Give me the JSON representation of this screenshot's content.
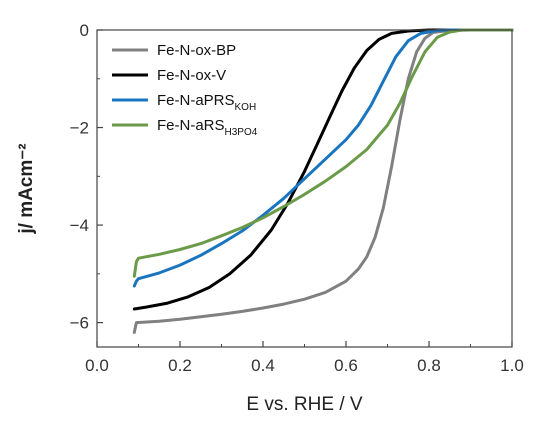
{
  "chart_data": {
    "type": "line",
    "xlabel": "E vs. RHE / V",
    "ylabel": "j/ mAcm⁻²",
    "xlim": [
      0.0,
      1.0
    ],
    "ylim": [
      -6.5,
      0
    ],
    "xticks": [
      0.0,
      0.2,
      0.4,
      0.6,
      0.8,
      1.0
    ],
    "xtick_labels": [
      "0.0",
      "0.2",
      "0.4",
      "0.6",
      "0.8",
      "1.0"
    ],
    "yticks": [
      0,
      -2,
      -4,
      -6
    ],
    "ytick_labels": [
      "0",
      "−2",
      "−4",
      "−6"
    ],
    "legend_position": "top-left",
    "grid": false,
    "series": [
      {
        "name": "Fe-N-ox-BP",
        "name_main": "Fe-N-ox-BP",
        "name_sub": "",
        "color": "#808080",
        "points": [
          [
            0.09,
            -6.2
          ],
          [
            0.095,
            -6.0
          ],
          [
            0.15,
            -5.97
          ],
          [
            0.2,
            -5.93
          ],
          [
            0.25,
            -5.88
          ],
          [
            0.3,
            -5.83
          ],
          [
            0.35,
            -5.77
          ],
          [
            0.4,
            -5.7
          ],
          [
            0.45,
            -5.62
          ],
          [
            0.5,
            -5.52
          ],
          [
            0.55,
            -5.38
          ],
          [
            0.6,
            -5.15
          ],
          [
            0.63,
            -4.9
          ],
          [
            0.65,
            -4.65
          ],
          [
            0.67,
            -4.25
          ],
          [
            0.69,
            -3.65
          ],
          [
            0.71,
            -2.8
          ],
          [
            0.73,
            -1.85
          ],
          [
            0.75,
            -1.0
          ],
          [
            0.77,
            -0.45
          ],
          [
            0.79,
            -0.17
          ],
          [
            0.81,
            -0.05
          ],
          [
            0.85,
            -0.01
          ],
          [
            0.9,
            0.0
          ],
          [
            1.0,
            0.0
          ]
        ]
      },
      {
        "name": "Fe-N-ox-V",
        "name_main": "Fe-N-ox-V",
        "name_sub": "",
        "color": "#000000",
        "points": [
          [
            0.09,
            -5.72
          ],
          [
            0.12,
            -5.68
          ],
          [
            0.17,
            -5.6
          ],
          [
            0.22,
            -5.47
          ],
          [
            0.27,
            -5.28
          ],
          [
            0.32,
            -5.0
          ],
          [
            0.37,
            -4.62
          ],
          [
            0.42,
            -4.1
          ],
          [
            0.46,
            -3.55
          ],
          [
            0.5,
            -2.9
          ],
          [
            0.53,
            -2.35
          ],
          [
            0.56,
            -1.8
          ],
          [
            0.59,
            -1.25
          ],
          [
            0.62,
            -0.78
          ],
          [
            0.65,
            -0.42
          ],
          [
            0.68,
            -0.19
          ],
          [
            0.71,
            -0.07
          ],
          [
            0.75,
            -0.02
          ],
          [
            0.8,
            0.0
          ],
          [
            1.0,
            0.0
          ]
        ]
      },
      {
        "name": "Fe-N-aPRS_KOH",
        "name_main": "Fe-N-aPRS",
        "name_sub": "KOH",
        "color": "#1a75c0",
        "points": [
          [
            0.09,
            -5.25
          ],
          [
            0.095,
            -5.15
          ],
          [
            0.1,
            -5.1
          ],
          [
            0.15,
            -4.98
          ],
          [
            0.2,
            -4.82
          ],
          [
            0.25,
            -4.62
          ],
          [
            0.3,
            -4.38
          ],
          [
            0.35,
            -4.12
          ],
          [
            0.4,
            -3.8
          ],
          [
            0.45,
            -3.45
          ],
          [
            0.5,
            -3.05
          ],
          [
            0.55,
            -2.65
          ],
          [
            0.6,
            -2.25
          ],
          [
            0.63,
            -1.95
          ],
          [
            0.66,
            -1.55
          ],
          [
            0.69,
            -1.05
          ],
          [
            0.72,
            -0.55
          ],
          [
            0.75,
            -0.22
          ],
          [
            0.78,
            -0.07
          ],
          [
            0.82,
            -0.01
          ],
          [
            0.85,
            0.0
          ],
          [
            1.0,
            0.0
          ]
        ]
      },
      {
        "name": "Fe-N-aRS_H3PO4",
        "name_main": "Fe-N-aRS",
        "name_sub": "H3PO4",
        "color": "#6b9a48",
        "points": [
          [
            0.09,
            -5.05
          ],
          [
            0.095,
            -4.75
          ],
          [
            0.1,
            -4.68
          ],
          [
            0.15,
            -4.6
          ],
          [
            0.2,
            -4.5
          ],
          [
            0.25,
            -4.38
          ],
          [
            0.3,
            -4.22
          ],
          [
            0.35,
            -4.05
          ],
          [
            0.4,
            -3.85
          ],
          [
            0.45,
            -3.62
          ],
          [
            0.5,
            -3.37
          ],
          [
            0.55,
            -3.1
          ],
          [
            0.6,
            -2.8
          ],
          [
            0.65,
            -2.45
          ],
          [
            0.7,
            -1.95
          ],
          [
            0.73,
            -1.5
          ],
          [
            0.76,
            -0.95
          ],
          [
            0.79,
            -0.45
          ],
          [
            0.82,
            -0.15
          ],
          [
            0.85,
            -0.04
          ],
          [
            0.88,
            0.0
          ],
          [
            1.0,
            0.0
          ]
        ]
      }
    ]
  }
}
